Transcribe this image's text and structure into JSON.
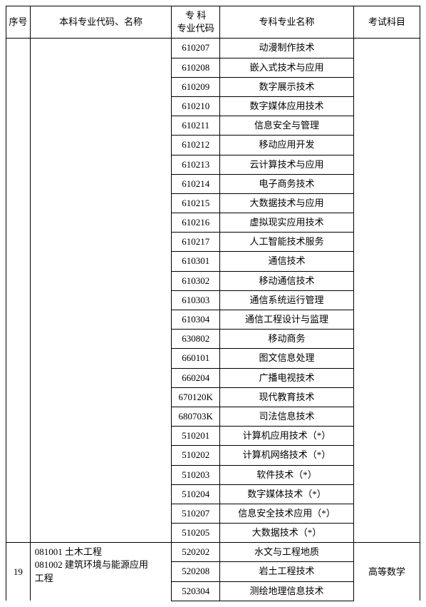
{
  "headers": {
    "seq": "序号",
    "major": "本科专业代码、名称",
    "code_line1": "专 科",
    "code_line2": "专业代码",
    "name": "专科专业名称",
    "exam": "考试科目"
  },
  "top_group": {
    "seq": "",
    "major": "",
    "exam": "",
    "rows": [
      {
        "code": "610207",
        "name": "动漫制作技术"
      },
      {
        "code": "610208",
        "name": "嵌入式技术与应用"
      },
      {
        "code": "610209",
        "name": "数字展示技术"
      },
      {
        "code": "610210",
        "name": "数字媒体应用技术"
      },
      {
        "code": "610211",
        "name": "信息安全与管理"
      },
      {
        "code": "610212",
        "name": "移动应用开发"
      },
      {
        "code": "610213",
        "name": "云计算技术与应用"
      },
      {
        "code": "610214",
        "name": "电子商务技术"
      },
      {
        "code": "610215",
        "name": "大数据技术与应用"
      },
      {
        "code": "610216",
        "name": "虚拟现实应用技术"
      },
      {
        "code": "610217",
        "name": "人工智能技术服务"
      },
      {
        "code": "610301",
        "name": "通信技术"
      },
      {
        "code": "610302",
        "name": "移动通信技术"
      },
      {
        "code": "610303",
        "name": "通信系统运行管理"
      },
      {
        "code": "610304",
        "name": "通信工程设计与监理"
      },
      {
        "code": "630802",
        "name": "移动商务"
      },
      {
        "code": "660101",
        "name": "图文信息处理"
      },
      {
        "code": "660204",
        "name": "广播电视技术"
      },
      {
        "code": "670120K",
        "name": "现代教育技术"
      },
      {
        "code": "680703K",
        "name": "司法信息技术"
      },
      {
        "code": "510201",
        "name": "计算机应用技术（*）"
      },
      {
        "code": "510202",
        "name": "计算机网络技术（*）"
      },
      {
        "code": "510203",
        "name": "软件技术（*）"
      },
      {
        "code": "510204",
        "name": "数字媒体技术（*）"
      },
      {
        "code": "510207",
        "name": "信息安全技术应用（*）"
      },
      {
        "code": "510205",
        "name": "大数据技术（*）"
      }
    ]
  },
  "bottom_group": {
    "seq": "19",
    "major_line1": "081001  土木工程",
    "major_line2": "081002  建筑环境与能源应用",
    "major_line3": "工程",
    "exam": "高等数学",
    "rows": [
      {
        "code": "520202",
        "name": "水文与工程地质"
      },
      {
        "code": "520208",
        "name": "岩土工程技术"
      },
      {
        "code": "520304",
        "name": "测绘地理信息技术"
      }
    ]
  }
}
